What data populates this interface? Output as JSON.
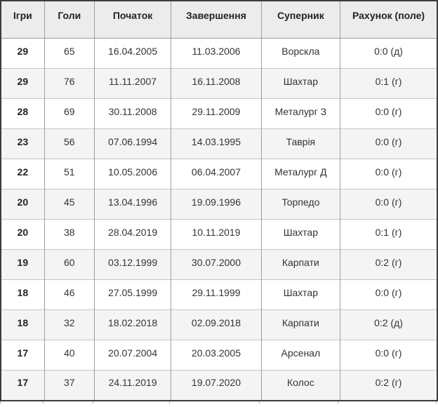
{
  "page": {
    "background": "#ffffff"
  },
  "table": {
    "description": "football-streak-statistics-table",
    "columns": [
      {
        "id": "games",
        "label": "Ігри"
      },
      {
        "id": "goals",
        "label": "Голи"
      },
      {
        "id": "start",
        "label": "Початок"
      },
      {
        "id": "end",
        "label": "Завершення"
      },
      {
        "id": "opponent",
        "label": "Суперник"
      },
      {
        "id": "score",
        "label": "Рахунок (поле)"
      }
    ],
    "rows": [
      [
        "29",
        "65",
        "16.04.2005",
        "11.03.2006",
        "Ворскла",
        "0:0 (д)"
      ],
      [
        "29",
        "76",
        "11.11.2007",
        "16.11.2008",
        "Шахтар",
        "0:1 (г)"
      ],
      [
        "28",
        "69",
        "30.11.2008",
        "29.11.2009",
        "Металург З",
        "0:0 (г)"
      ],
      [
        "23",
        "56",
        "07.06.1994",
        "14.03.1995",
        "Таврія",
        "0:0 (г)"
      ],
      [
        "22",
        "51",
        "10.05.2006",
        "06.04.2007",
        "Металург Д",
        "0:0 (г)"
      ],
      [
        "20",
        "45",
        "13.04.1996",
        "19.09.1996",
        "Торпедо",
        "0:0 (г)"
      ],
      [
        "20",
        "38",
        "28.04.2019",
        "10.11.2019",
        "Шахтар",
        "0:1 (г)"
      ],
      [
        "19",
        "60",
        "03.12.1999",
        "30.07.2000",
        "Карпати",
        "0:2 (г)"
      ],
      [
        "18",
        "46",
        "27.05.1999",
        "29.11.1999",
        "Шахтар",
        "0:0 (г)"
      ],
      [
        "18",
        "32",
        "18.02.2018",
        "02.09.2018",
        "Карпати",
        "0:2 (д)"
      ],
      [
        "17",
        "40",
        "20.07.2004",
        "20.03.2005",
        "Арсенал",
        "0:0 (г)"
      ],
      [
        "17",
        "37",
        "24.11.2019",
        "19.07.2020",
        "Колос",
        "0:2 (г)"
      ]
    ],
    "colors": {
      "header_bg": "#ececec",
      "stripe_bg": "#f4f4f5",
      "outer_border": "#3c3c3c",
      "column_border": "#9e9e9e",
      "row_border": "#c6c6c6",
      "header_text": "#222222",
      "body_text": "#333333",
      "page_bg": "#ffffff"
    }
  }
}
